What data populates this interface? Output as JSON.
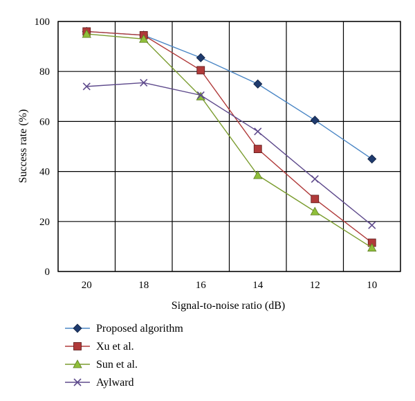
{
  "chart_data": {
    "type": "line",
    "title": "",
    "xlabel": "Signal-to-noise ratio (dB)",
    "ylabel": "Success rate (%)",
    "x": [
      20,
      18,
      16,
      14,
      12,
      10
    ],
    "x_tick_labels": [
      "20",
      "18",
      "16",
      "14",
      "12",
      "10"
    ],
    "y_ticks": [
      0,
      20,
      40,
      60,
      80,
      100
    ],
    "y_tick_labels": [
      "0",
      "20",
      "40",
      "60",
      "80",
      "100"
    ],
    "ylim": [
      0,
      100
    ],
    "grid": true,
    "legend_position": "bottom",
    "series": [
      {
        "name": "Proposed algorithm",
        "color": "#4a86c5",
        "marker_color": "#1f3b6e",
        "marker": "diamond",
        "values": [
          96,
          94.5,
          85.5,
          75,
          60.5,
          45
        ]
      },
      {
        "name": "Xu et al.",
        "color": "#b03a3a",
        "marker_color": "#b03a3a",
        "marker": "square",
        "values": [
          96,
          94.5,
          80.5,
          49,
          29,
          11.5
        ]
      },
      {
        "name": "Sun et al.",
        "color": "#7a9c2e",
        "marker_color": "#8fbf3a",
        "marker": "triangle",
        "values": [
          95,
          93,
          70,
          38.5,
          24,
          9.5
        ]
      },
      {
        "name": "Aylward",
        "color": "#5e4a8c",
        "marker_color": "#5e4a8c",
        "marker": "x",
        "values": [
          74,
          75.5,
          70.5,
          56,
          37,
          18.5
        ]
      }
    ]
  }
}
